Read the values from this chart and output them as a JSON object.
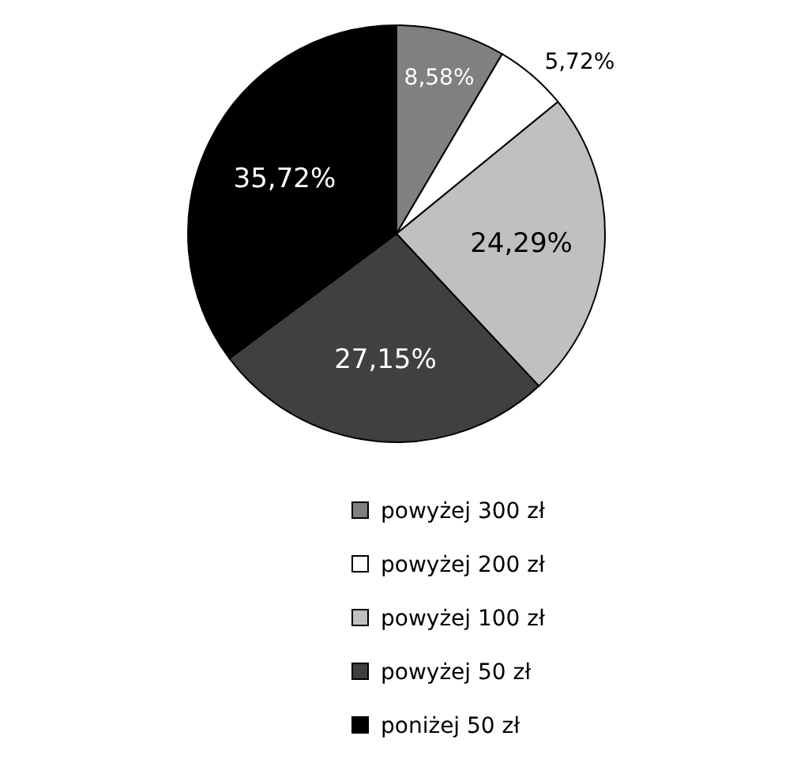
{
  "chart_data": {
    "type": "pie",
    "categories": [
      "powyżej 300 zł",
      "powyżej 200 zł",
      "powyżej 100 zł",
      "powyżej 50 zł",
      "poniżej 50 zł"
    ],
    "values": [
      8.58,
      5.72,
      24.29,
      27.15,
      35.72
    ],
    "value_labels": [
      "8,58%",
      "5,72%",
      "24,29%",
      "27,15%",
      "35,72%"
    ],
    "colors": [
      "#808080",
      "#ffffff",
      "#c0c0c0",
      "#404040",
      "#000000"
    ],
    "legend": "bottom"
  }
}
